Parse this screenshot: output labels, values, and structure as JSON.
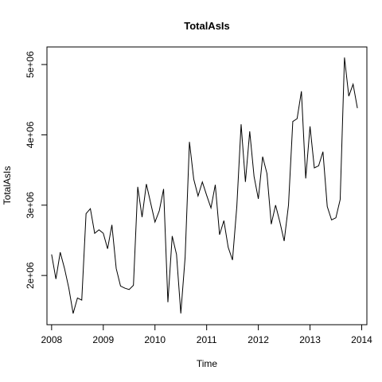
{
  "chart_data": {
    "type": "line",
    "title": "TotalAsIs",
    "xlabel": "Time",
    "ylabel": "TotalAsIs",
    "xlim": [
      2007.91,
      2014.1
    ],
    "ylim": [
      1300000,
      5250000
    ],
    "x_ticks": [
      2008,
      2009,
      2010,
      2011,
      2012,
      2013,
      2014
    ],
    "x_tick_labels": [
      "2008",
      "2009",
      "2010",
      "2011",
      "2012",
      "2013",
      "2014"
    ],
    "y_ticks": [
      2000000,
      3000000,
      4000000,
      5000000
    ],
    "y_tick_labels": [
      "2e+06",
      "3e+06",
      "4e+06",
      "5e+06"
    ],
    "grid": false,
    "line_color": "#000000",
    "x_start": 2008,
    "frequency": 12,
    "series": [
      {
        "values": [
          2300000,
          1950000,
          2330000,
          2100000,
          1820000,
          1460000,
          1680000,
          1650000,
          2880000,
          2950000,
          2600000,
          2650000,
          2600000,
          2380000,
          2720000,
          2100000,
          1850000,
          1820000,
          1800000,
          1860000,
          3260000,
          2830000,
          3300000,
          3030000,
          2760000,
          2920000,
          3230000,
          1620000,
          2560000,
          2300000,
          1460000,
          2260000,
          3900000,
          3370000,
          3130000,
          3330000,
          3140000,
          2960000,
          3290000,
          2580000,
          2780000,
          2400000,
          2220000,
          2980000,
          4150000,
          3330000,
          4050000,
          3410000,
          3090000,
          3690000,
          3450000,
          2730000,
          3000000,
          2760000,
          2490000,
          3000000,
          4190000,
          4230000,
          4620000,
          3380000,
          4120000,
          3530000,
          3560000,
          3760000,
          2980000,
          2790000,
          2820000,
          3080000,
          5100000,
          4550000,
          4720000,
          4380000
        ]
      }
    ]
  }
}
